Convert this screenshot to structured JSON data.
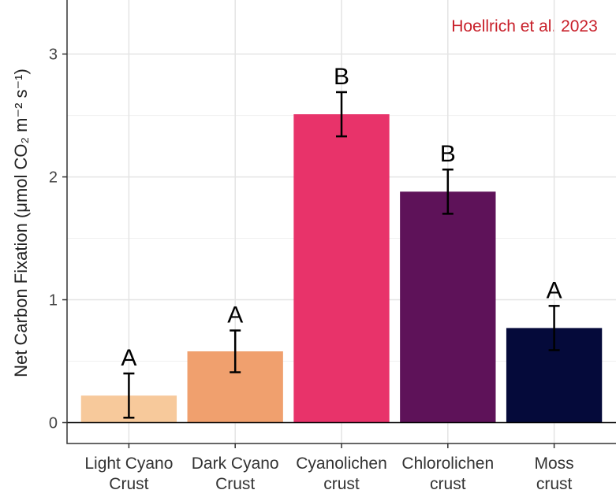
{
  "chart_data": {
    "type": "bar",
    "y_label": "Net Carbon Fixation (μmol CO₂ m⁻² s⁻¹)",
    "annotation": "Hoellrich et al. 2023",
    "categories": [
      "Light Cyano\nCrust",
      "Dark Cyano\nCrust",
      "Cyanolichen\ncrust",
      "Chlorolichen\ncrust",
      "Moss\ncrust"
    ],
    "values": [
      0.22,
      0.58,
      2.51,
      1.88,
      0.77
    ],
    "errors": [
      0.18,
      0.17,
      0.18,
      0.18,
      0.18
    ],
    "letters": [
      "A",
      "A",
      "B",
      "B",
      "A"
    ],
    "colors": [
      "#f7c99b",
      "#f0a06e",
      "#e8336a",
      "#5e1259",
      "#050a3a"
    ],
    "ylim": [
      -0.17,
      3.44
    ],
    "yticks": [
      0,
      1,
      2,
      3
    ],
    "minor_yticks": [
      0.5,
      1.5,
      2.5
    ],
    "grid": true
  }
}
